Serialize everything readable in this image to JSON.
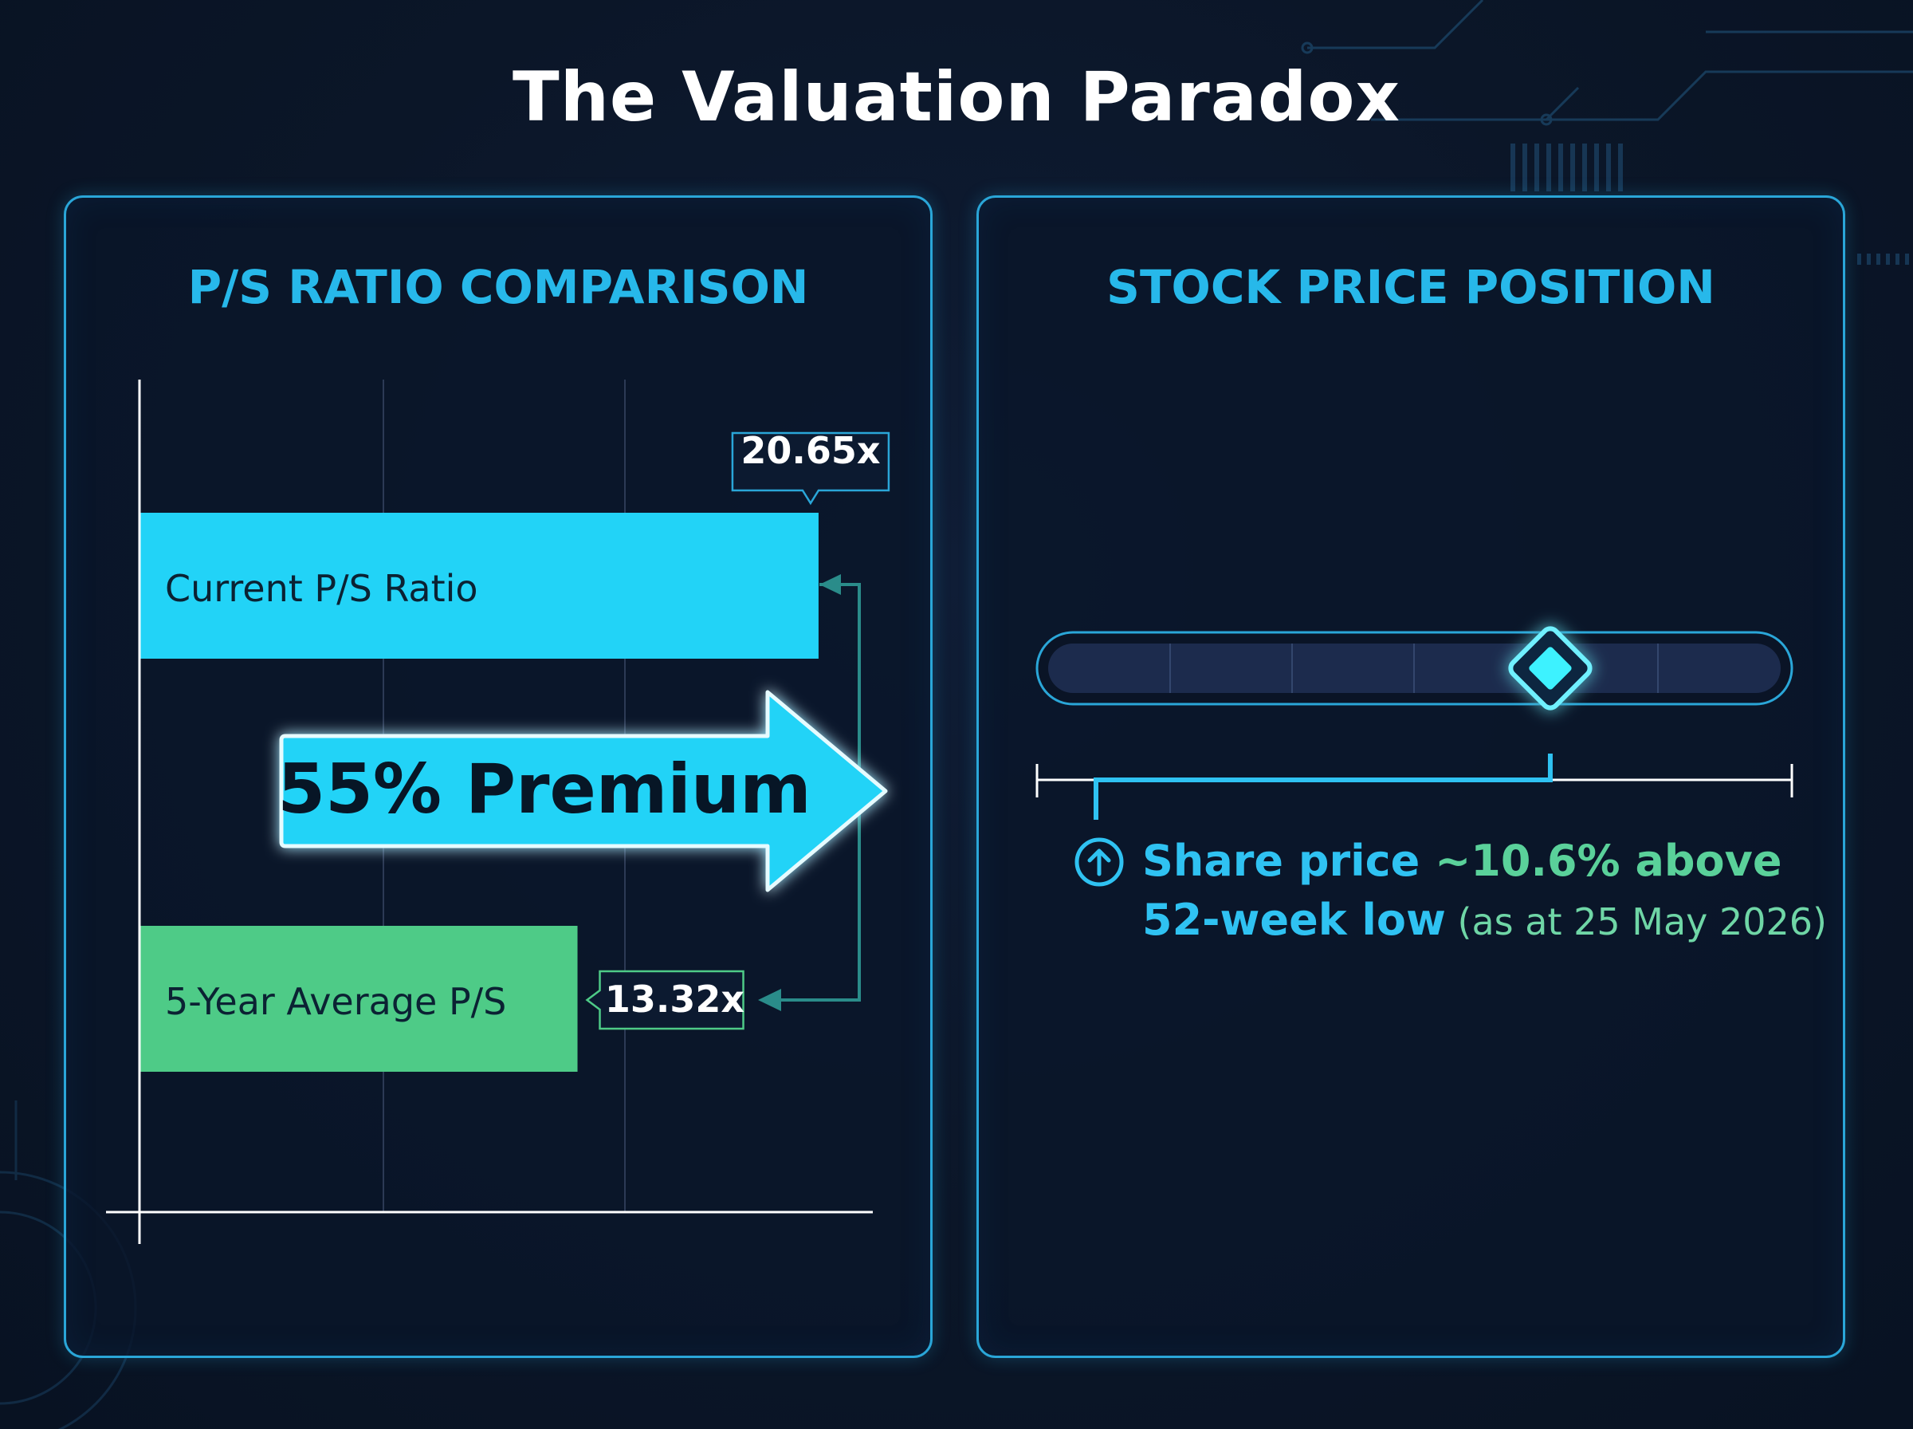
{
  "title": "The Valuation Paradox",
  "left_panel": {
    "title": "P/S RATIO COMPARISON"
  },
  "right_panel": {
    "title": "STOCK PRICE POSITION",
    "note_part1": "Share price ",
    "note_value": "~10.6% above",
    "note_part2": "52-week low",
    "note_date": " (as at 25 May 2026)",
    "position_fraction": 0.68,
    "marker_icon": "diamond-marker-icon",
    "note_icon": "arrow-up-circle-icon"
  },
  "chart_data": {
    "type": "bar",
    "orientation": "horizontal",
    "categories": [
      "Current P/S Ratio",
      "5-Year Average P/S"
    ],
    "values": [
      20.65,
      13.32
    ],
    "value_labels": [
      "20.65x",
      "13.32x"
    ],
    "colors": [
      "#22d3f7",
      "#4ecb87"
    ],
    "xlim": [
      0,
      22.3
    ],
    "grid": true,
    "annotation": "55% Premium"
  },
  "colors": {
    "accent": "#22d3f7",
    "green": "#4ecb87",
    "border": "#2aa6d8",
    "bg": "#0b1628"
  }
}
